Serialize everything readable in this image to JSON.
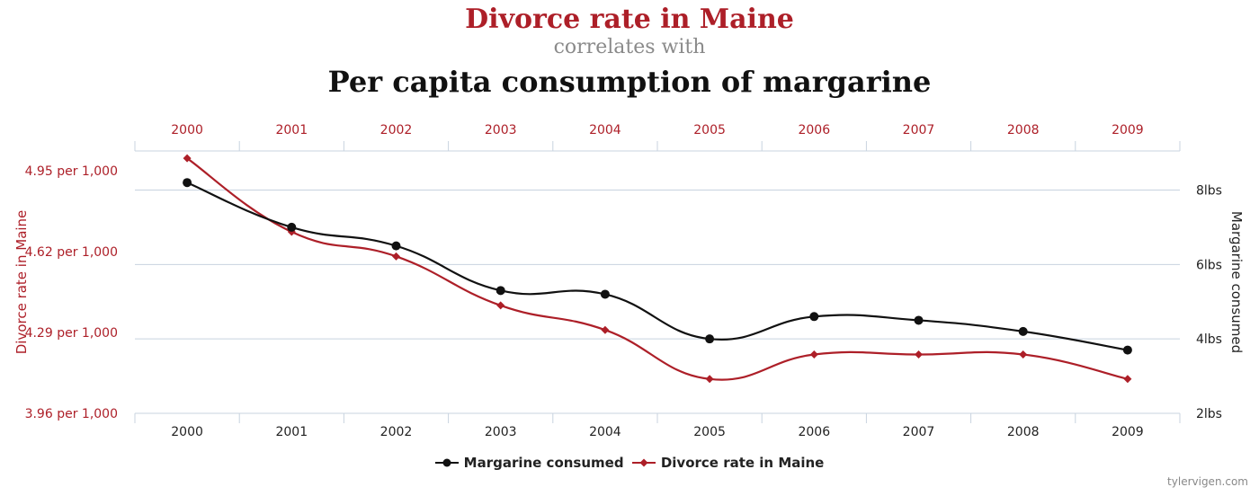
{
  "title": {
    "line1": "Divorce rate in Maine",
    "line2": "correlates with",
    "line3": "Per capita consumption of margarine"
  },
  "watermark": "tylervigen.com",
  "colors": {
    "divorce": "#ad1f28",
    "margarine": "#111111",
    "grid": "#c8d3df",
    "subtitle": "#8a8a8a"
  },
  "chart_data": {
    "type": "line",
    "x": [
      "2000",
      "2001",
      "2002",
      "2003",
      "2004",
      "2005",
      "2006",
      "2007",
      "2008",
      "2009"
    ],
    "y_left": {
      "label": "Divorce rate in Maine",
      "ticks": [
        "3.96 per 1,000",
        "4.29 per 1,000",
        "4.62 per 1,000",
        "4.95 per 1,000"
      ],
      "tick_values": [
        3.96,
        4.29,
        4.62,
        4.95
      ],
      "range": [
        3.96,
        5.03
      ]
    },
    "y_right": {
      "label": "Margarine consumed",
      "ticks": [
        "2lbs",
        "4lbs",
        "6lbs",
        "8lbs"
      ],
      "tick_values": [
        2,
        4,
        6,
        8
      ],
      "range": [
        2,
        9.05
      ]
    },
    "series": [
      {
        "name": "Margarine consumed",
        "axis": "right",
        "color": "#111111",
        "marker": "circle",
        "values": [
          8.2,
          7.0,
          6.5,
          5.3,
          5.2,
          4.0,
          4.6,
          4.5,
          4.2,
          3.7
        ]
      },
      {
        "name": "Divorce rate in Maine",
        "axis": "left",
        "color": "#ad1f28",
        "marker": "diamond",
        "values": [
          5.0,
          4.7,
          4.6,
          4.4,
          4.3,
          4.1,
          4.2,
          4.2,
          4.2,
          4.1
        ]
      }
    ],
    "grid": true,
    "legend": "bottom-center"
  }
}
